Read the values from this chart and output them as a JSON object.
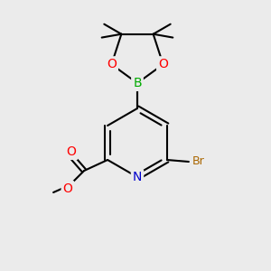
{
  "bg_color": "#ebebeb",
  "bond_color": "#000000",
  "bond_width": 1.5,
  "atom_colors": {
    "O": "#ff0000",
    "N": "#0000cc",
    "B": "#00aa00",
    "Br": "#aa6600",
    "C": "#000000"
  },
  "font_size_atom": 10,
  "font_size_br": 9
}
